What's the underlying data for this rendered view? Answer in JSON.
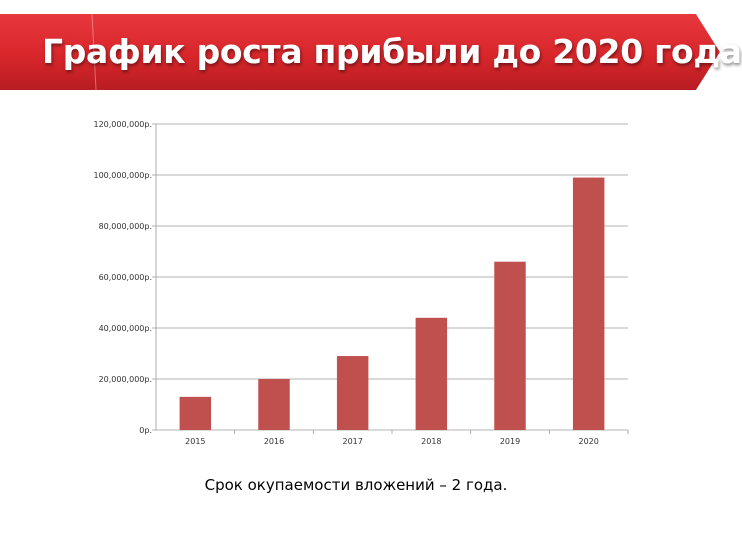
{
  "title": "График роста прибыли до 2020 года",
  "caption": "Срок окупаемости вложений – 2 года.",
  "colors": {
    "title_bar": "#d8262b",
    "title_bar_dark": "#b71d22",
    "bar": "#c0504d",
    "grid": "#9a9a9a",
    "axis_text": "#333333"
  },
  "chart_data": {
    "type": "bar",
    "categories": [
      "2015",
      "2016",
      "2017",
      "2018",
      "2019",
      "2020"
    ],
    "values": [
      13000000,
      20000000,
      29000000,
      44000000,
      66000000,
      99000000
    ],
    "ylim": [
      0,
      120000000
    ],
    "yticks": [
      0,
      20000000,
      40000000,
      60000000,
      80000000,
      100000000,
      120000000
    ],
    "ytick_labels": [
      "0р.",
      "20,000,000р.",
      "40,000,000р.",
      "60,000,000р.",
      "80,000,000р.",
      "100,000,000р.",
      "120,000,000р."
    ],
    "grid": true,
    "legend": "none",
    "title": "",
    "xlabel": "",
    "ylabel": ""
  }
}
